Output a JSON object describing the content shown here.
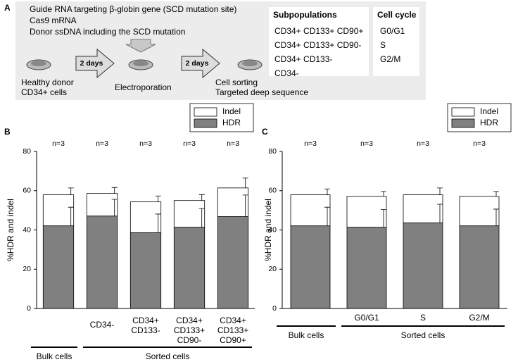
{
  "panel_a": {
    "label": "A",
    "reagents": [
      "Guide RNA targeting β-globin gene (SCD mutation site)",
      "Cas9 mRNA",
      "Donor ssDNA including the SCD mutation"
    ],
    "arrows": [
      "2 days",
      "2 days"
    ],
    "steps": [
      [
        "Healthy donor",
        "CD34+ cells"
      ],
      [
        "Electroporation"
      ],
      [
        "Cell sorting",
        "Targeted deep sequence"
      ]
    ],
    "subpopulations": {
      "title": "Subpopulations",
      "items": [
        "CD34+ CD133+ CD90+",
        "CD34+ CD133+ CD90-",
        "CD34+ CD133-",
        "CD34-"
      ]
    },
    "cell_cycle": {
      "title": "Cell cycle",
      "items": [
        "G0/G1",
        "S",
        "G2/M"
      ]
    }
  },
  "chart_data": [
    {
      "type": "bar",
      "stacked": true,
      "panel_label": "B",
      "ylabel": "%HDR and indel",
      "categories": [
        null,
        [
          "CD34-"
        ],
        [
          "CD34+",
          "CD133-"
        ],
        [
          "CD34+",
          "CD133+",
          "CD90-"
        ],
        [
          "CD34+",
          "CD133+",
          "CD90+"
        ]
      ],
      "category_groups": [
        "Bulk cells",
        "Sorted cells",
        "Sorted cells",
        "Sorted cells",
        "Sorted cells"
      ],
      "n_labels": [
        "n=3",
        "n=3",
        "n=3",
        "n=3",
        "n=3"
      ],
      "series": [
        {
          "name": "HDR",
          "color": "#808080",
          "values": [
            42.1,
            47.1,
            38.6,
            41.4,
            46.8
          ],
          "errors": [
            9.5,
            8.5,
            9.5,
            9.5,
            11
          ]
        },
        {
          "name": "Indel",
          "color": "#ffffff",
          "values": [
            15.8,
            11.5,
            15.7,
            13.6,
            14.6
          ],
          "errors": [
            3.5,
            3,
            3,
            3,
            5
          ]
        }
      ],
      "ylim": [
        0,
        80
      ],
      "yticks": [
        0,
        20,
        40,
        60,
        80
      ],
      "grid": false,
      "legend": "top-right"
    },
    {
      "type": "bar",
      "stacked": true,
      "panel_label": "C",
      "ylabel": "%HDR and indel",
      "categories": [
        null,
        [
          "G0/G1"
        ],
        [
          "S"
        ],
        [
          "G2/M"
        ]
      ],
      "category_groups": [
        "Bulk cells",
        "Sorted cells",
        "Sorted cells",
        "Sorted cells"
      ],
      "n_labels": [
        "n=3",
        "n=3",
        "n=3",
        "n=3"
      ],
      "series": [
        {
          "name": "HDR",
          "color": "#808080",
          "values": [
            42.1,
            41.4,
            43.6,
            42.1
          ],
          "errors": [
            9.5,
            9,
            9.5,
            8.5
          ]
        },
        {
          "name": "Indel",
          "color": "#ffffff",
          "values": [
            15.8,
            15.7,
            14.3,
            15
          ],
          "errors": [
            3,
            2.5,
            3.5,
            2.5
          ]
        }
      ],
      "ylim": [
        0,
        80
      ],
      "yticks": [
        0,
        20,
        40,
        60,
        80
      ],
      "grid": false,
      "legend": "top-right"
    }
  ]
}
